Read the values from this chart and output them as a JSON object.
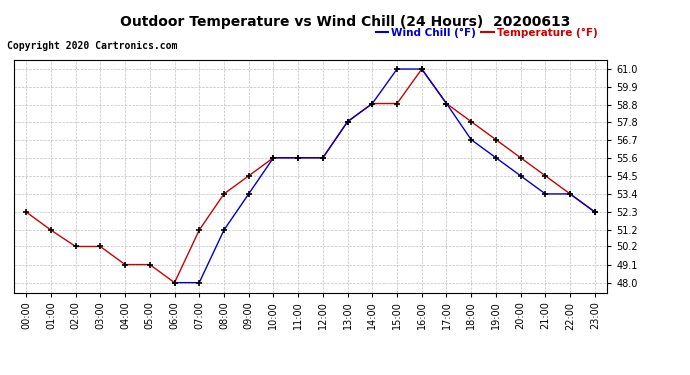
{
  "title": "Outdoor Temperature vs Wind Chill (24 Hours)  20200613",
  "copyright": "Copyright 2020 Cartronics.com",
  "legend_wind_chill": "Wind Chill (°F)",
  "legend_temperature": "Temperature (°F)",
  "hours": [
    0,
    1,
    2,
    3,
    4,
    5,
    6,
    7,
    8,
    9,
    10,
    11,
    12,
    13,
    14,
    15,
    16,
    17,
    18,
    19,
    20,
    21,
    22,
    23
  ],
  "temperature": [
    52.3,
    51.2,
    50.2,
    50.2,
    49.1,
    49.1,
    48.0,
    51.2,
    53.4,
    54.5,
    55.6,
    55.6,
    55.6,
    57.8,
    58.9,
    58.9,
    61.0,
    58.9,
    57.8,
    56.7,
    55.6,
    54.5,
    53.4,
    52.3
  ],
  "wind_chill": [
    null,
    null,
    null,
    null,
    null,
    null,
    48.0,
    48.0,
    51.2,
    53.4,
    55.6,
    55.6,
    55.6,
    57.8,
    58.9,
    61.0,
    61.0,
    58.9,
    56.7,
    55.6,
    54.5,
    53.4,
    53.4,
    52.3
  ],
  "temp_color": "#cc0000",
  "wind_chill_color": "#0000cc",
  "ylim_min": 47.4,
  "ylim_max": 61.55,
  "yticks": [
    48.0,
    49.1,
    50.2,
    51.2,
    52.3,
    53.4,
    54.5,
    55.6,
    56.7,
    57.8,
    58.8,
    59.9,
    61.0
  ],
  "background_color": "#ffffff",
  "grid_color": "#b0b0b0",
  "marker": "+",
  "marker_size": 5,
  "linewidth": 1.0,
  "title_fontsize": 10,
  "tick_fontsize": 7,
  "copyright_fontsize": 7
}
